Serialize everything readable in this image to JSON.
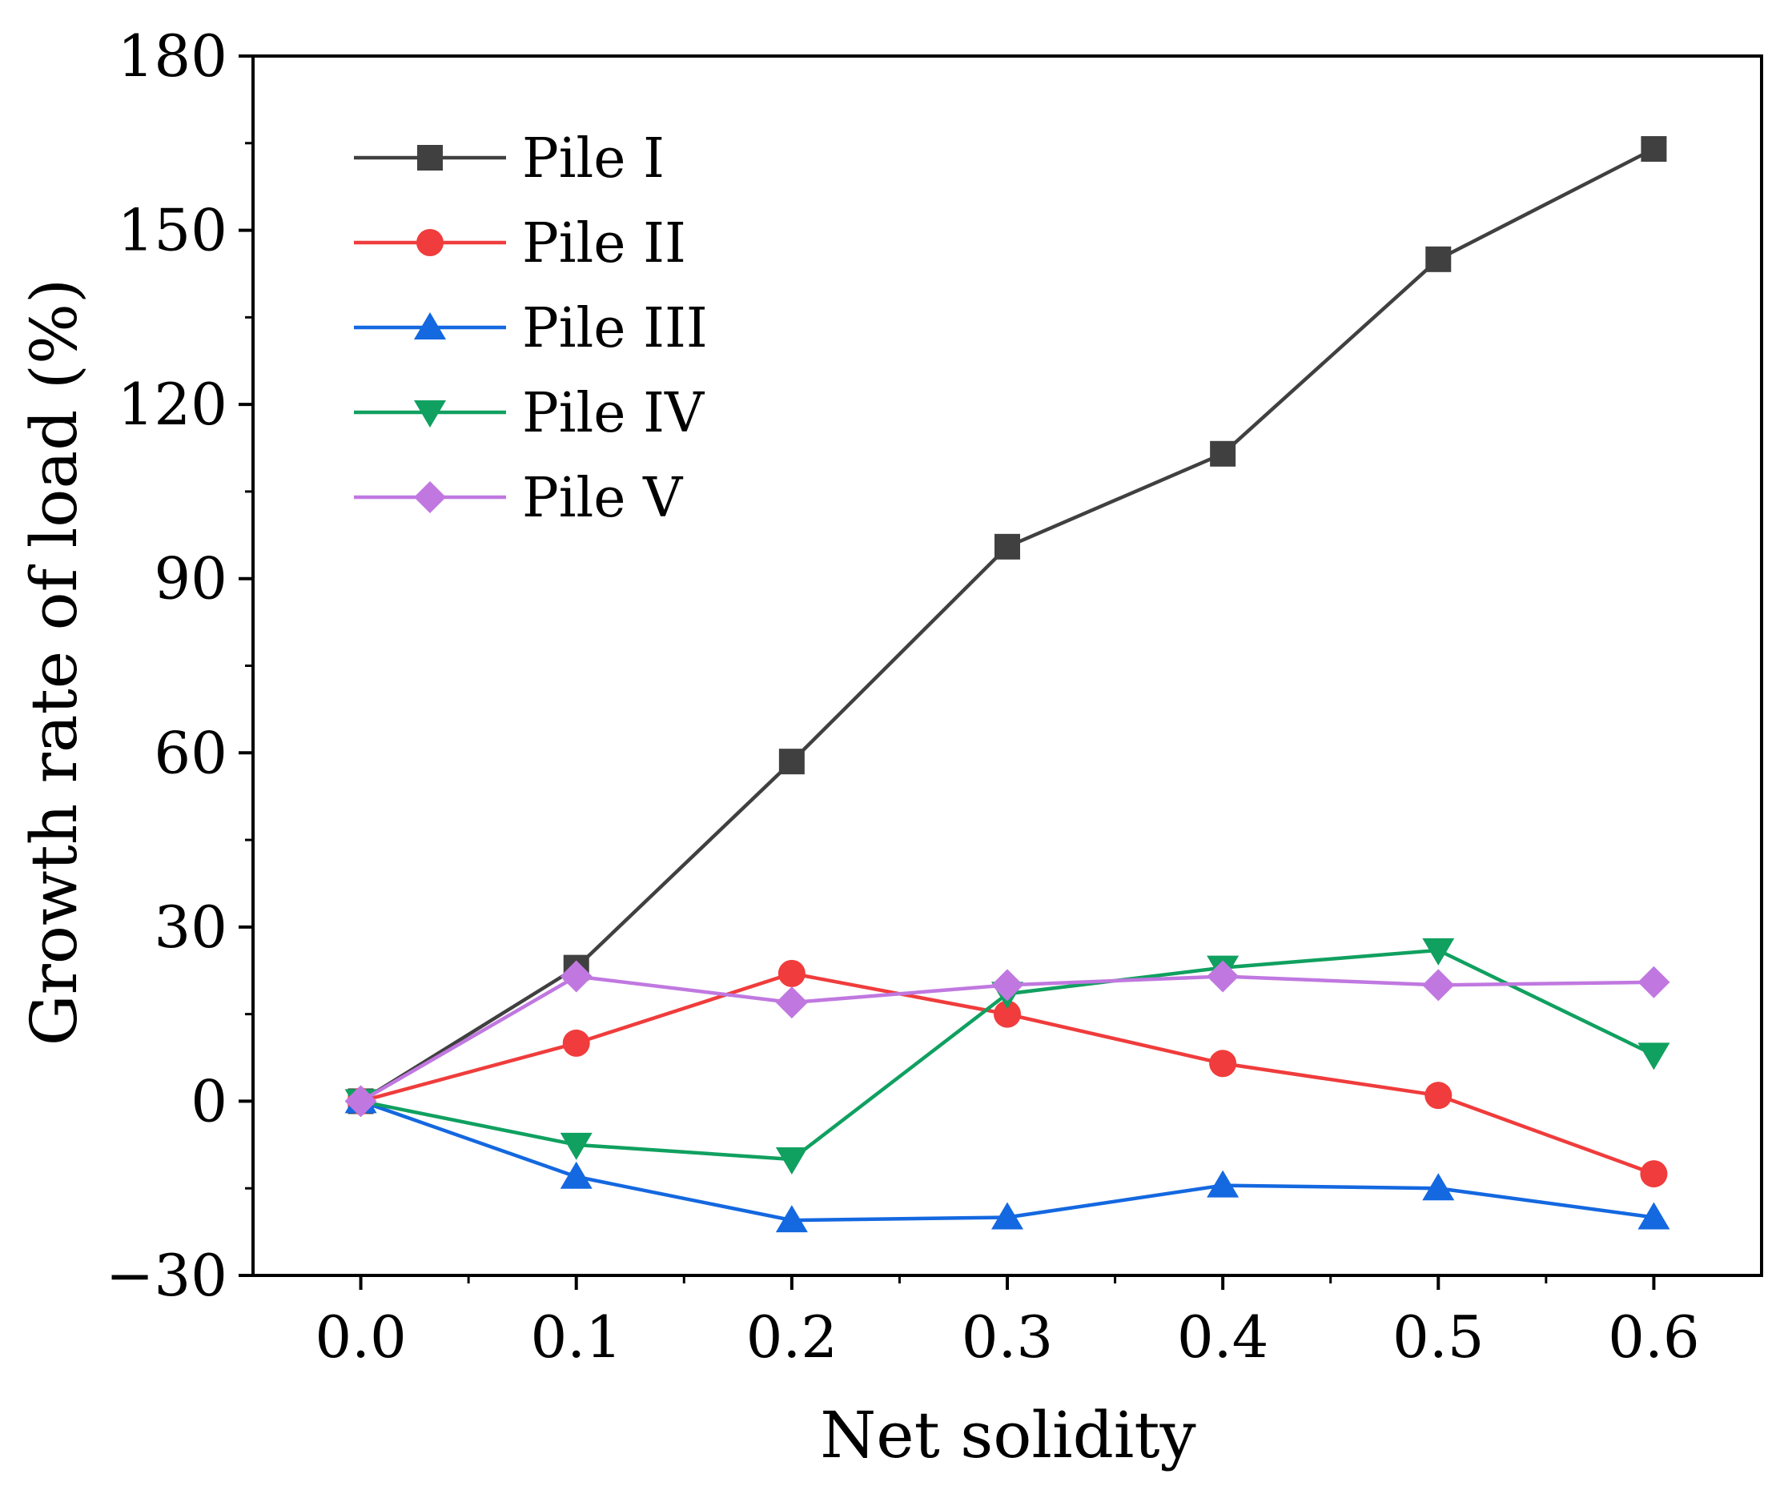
{
  "chart_data": {
    "type": "line",
    "xlabel": "Net solidity",
    "ylabel": "Growth rate of load (%)",
    "x": [
      0.0,
      0.1,
      0.2,
      0.3,
      0.4,
      0.5,
      0.6
    ],
    "x_tick_labels": [
      "0.0",
      "0.1",
      "0.2",
      "0.3",
      "0.4",
      "0.5",
      "0.6"
    ],
    "xlim": [
      -0.05,
      0.65
    ],
    "ylim": [
      -30,
      180
    ],
    "y_ticks": [
      -30,
      0,
      30,
      60,
      90,
      120,
      150,
      180
    ],
    "y_tick_labels": [
      "−30",
      "0",
      "30",
      "60",
      "90",
      "120",
      "150",
      "180"
    ],
    "grid": false,
    "legend_position": "top-left",
    "series": [
      {
        "name": "Pile I",
        "color": "#404040",
        "marker": "square",
        "values": [
          0,
          23,
          58.5,
          95.5,
          111.5,
          145,
          164
        ]
      },
      {
        "name": "Pile II",
        "color": "#f03c3c",
        "marker": "circle",
        "values": [
          0,
          10,
          22,
          15,
          6.5,
          1,
          -12.5
        ]
      },
      {
        "name": "Pile III",
        "color": "#1468e0",
        "marker": "triangle-up",
        "values": [
          0,
          -13,
          -20.5,
          -20,
          -14.5,
          -15,
          -20
        ]
      },
      {
        "name": "Pile IV",
        "color": "#10a060",
        "marker": "triangle-down",
        "values": [
          0,
          -7.5,
          -10,
          18.5,
          23,
          26,
          8
        ]
      },
      {
        "name": "Pile V",
        "color": "#c078e0",
        "marker": "diamond",
        "values": [
          0,
          21.5,
          17,
          20,
          21.5,
          20,
          20.5
        ]
      }
    ]
  }
}
